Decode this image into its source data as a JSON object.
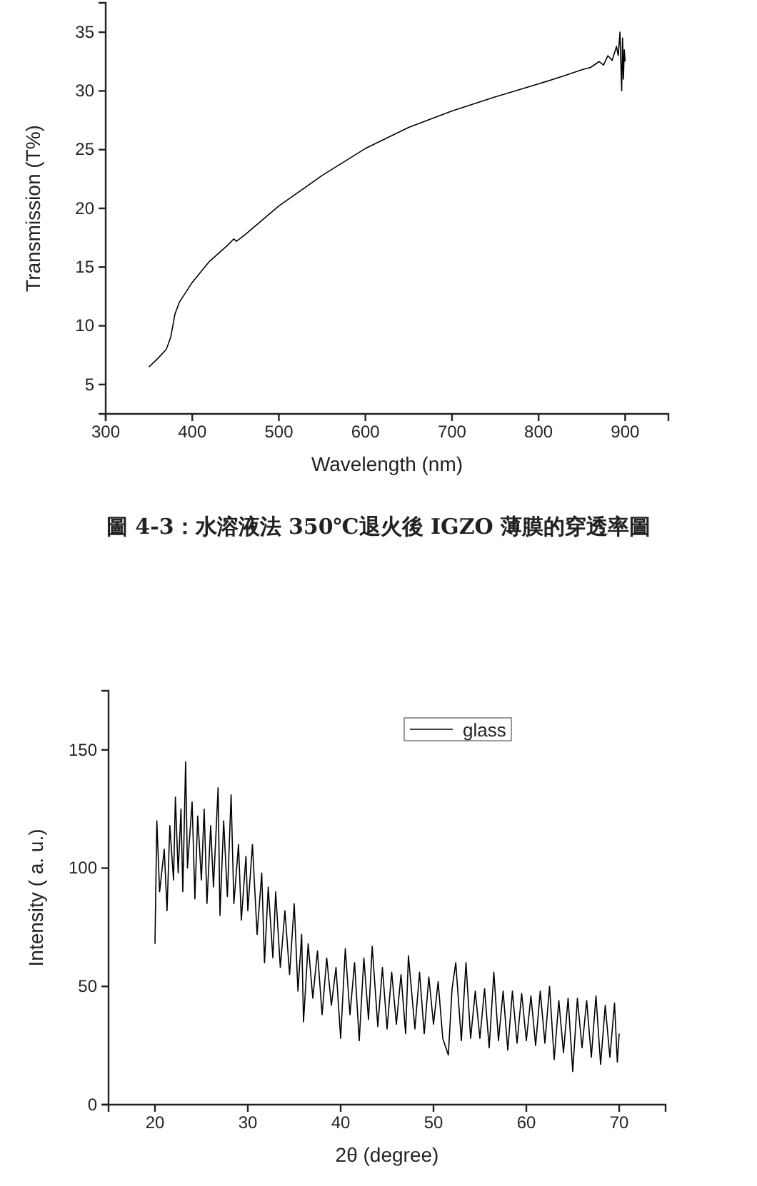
{
  "chart_data": [
    {
      "type": "line",
      "xlabel": "Wavelength (nm)",
      "ylabel": "Transmission (T%)",
      "xlim": [
        300,
        950
      ],
      "ylim": [
        2.5,
        37.5
      ],
      "xticks": [
        300,
        400,
        500,
        600,
        700,
        800,
        900
      ],
      "yticks": [
        5,
        10,
        15,
        20,
        25,
        30,
        35
      ],
      "grid": false,
      "legend": false,
      "annotations": [
        "圖 4-3：水溶液法 350℃退火後 IGZO 薄膜的穿透率圖"
      ],
      "series": [
        {
          "color": "#000000",
          "x": [
            350,
            360,
            370,
            375,
            380,
            385,
            400,
            420,
            440,
            448,
            451,
            460,
            500,
            550,
            600,
            650,
            700,
            750,
            800,
            830,
            850,
            860,
            870,
            875,
            880,
            885,
            890,
            892,
            894,
            896,
            897,
            898,
            899,
            900
          ],
          "values": [
            6.5,
            7.2,
            8.0,
            9.0,
            11.0,
            12.0,
            13.7,
            15.5,
            16.8,
            17.4,
            17.2,
            17.7,
            20.2,
            22.8,
            25.1,
            26.9,
            28.3,
            29.5,
            30.6,
            31.3,
            31.8,
            32.0,
            32.5,
            32.2,
            33.0,
            32.6,
            33.8,
            33.0,
            35.0,
            30.0,
            34.5,
            31.0,
            33.5,
            32.5
          ]
        }
      ]
    },
    {
      "type": "line",
      "xlabel": "2θ (degree)",
      "ylabel": "Intensity ( a. u.)",
      "xlim": [
        15,
        75
      ],
      "ylim": [
        0,
        175
      ],
      "xticks": [
        20,
        30,
        40,
        50,
        60,
        70
      ],
      "yticks": [
        0,
        50,
        100,
        150
      ],
      "grid": false,
      "legend": "top right",
      "series": [
        {
          "name": "glass",
          "color": "#000000",
          "x": [
            20,
            20.2,
            20.5,
            21,
            21.3,
            21.6,
            22,
            22.2,
            22.5,
            22.8,
            23,
            23.3,
            23.5,
            24,
            24.3,
            24.6,
            25,
            25.3,
            25.6,
            26,
            26.3,
            26.8,
            27,
            27.4,
            27.8,
            28.2,
            28.5,
            29,
            29.3,
            29.8,
            30,
            30.5,
            31,
            31.5,
            31.8,
            32.2,
            32.7,
            33,
            33.5,
            34,
            34.5,
            35,
            35.4,
            35.8,
            36,
            36.5,
            37,
            37.5,
            38,
            38.5,
            39,
            39.5,
            40,
            40.5,
            41,
            41.5,
            42,
            42.5,
            43,
            43.4,
            44,
            44.5,
            45,
            45.5,
            46,
            46.5,
            47,
            47.3,
            48,
            48.5,
            49,
            49.5,
            50,
            50.5,
            51,
            51.6,
            52,
            52.4,
            53,
            53.5,
            54,
            54.5,
            55,
            55.5,
            56,
            56.5,
            57,
            57.5,
            58,
            58.5,
            59,
            59.5,
            60,
            60.5,
            61,
            61.5,
            62,
            62.5,
            63,
            63.5,
            64,
            64.5,
            65,
            65.5,
            66,
            66.5,
            67,
            67.5,
            68,
            68.5,
            69,
            69.5,
            69.8,
            70
          ],
          "values": [
            68,
            120,
            90,
            108,
            82,
            118,
            95,
            130,
            98,
            125,
            90,
            145,
            100,
            128,
            87,
            122,
            95,
            125,
            85,
            118,
            92,
            134,
            80,
            120,
            88,
            131,
            85,
            110,
            78,
            105,
            82,
            110,
            72,
            98,
            60,
            92,
            62,
            90,
            58,
            82,
            55,
            85,
            48,
            72,
            35,
            68,
            45,
            65,
            38,
            62,
            42,
            58,
            28,
            66,
            38,
            60,
            27,
            62,
            36,
            67,
            33,
            58,
            32,
            56,
            34,
            55,
            30,
            63,
            32,
            56,
            30,
            54,
            34,
            52,
            28,
            21,
            49,
            60,
            27,
            60,
            28,
            48,
            28,
            49,
            24,
            56,
            27,
            48,
            23,
            48,
            26,
            47,
            27,
            46,
            25,
            48,
            26,
            50,
            19,
            44,
            22,
            45,
            14,
            45,
            24,
            44,
            20,
            46,
            17,
            42,
            20,
            43,
            18,
            30
          ]
        }
      ]
    }
  ]
}
